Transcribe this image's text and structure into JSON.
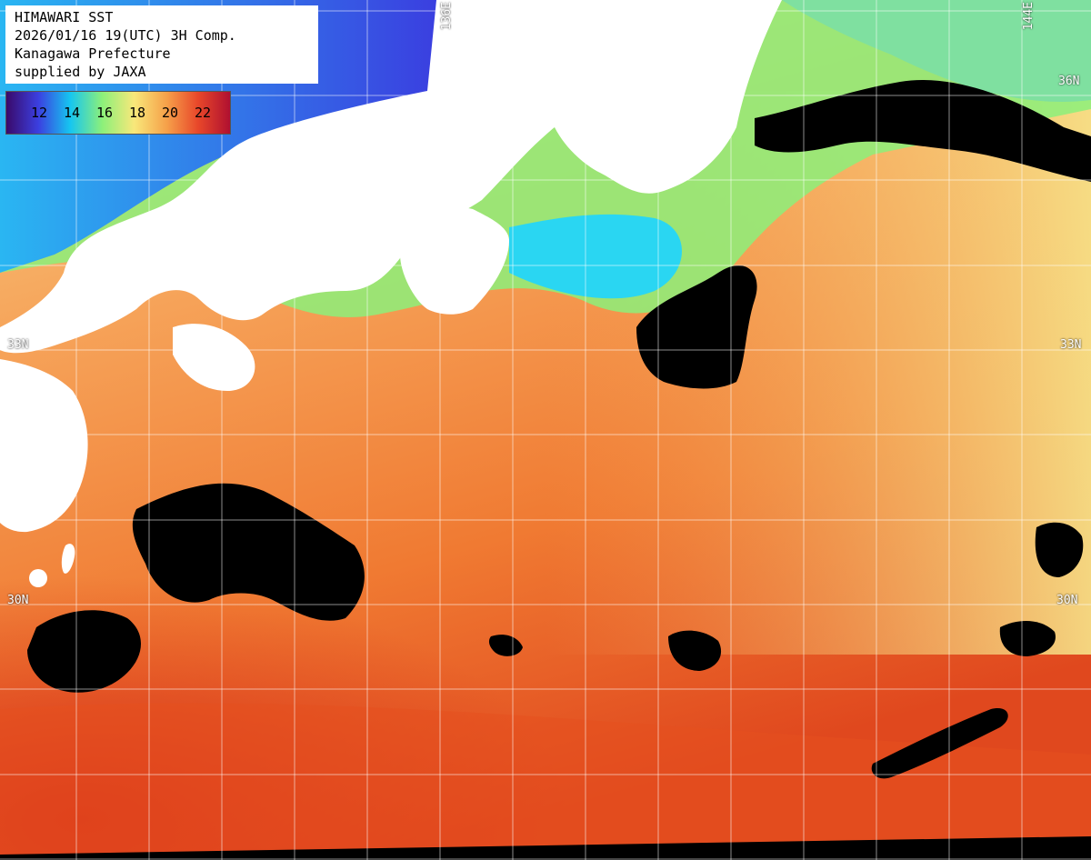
{
  "header": {
    "lines": [
      "HIMAWARI SST",
      "2026/01/16 19(UTC) 3H Comp.",
      "Kanagawa Prefecture",
      "supplied by JAXA"
    ]
  },
  "legend": {
    "labels": [
      "12",
      "14",
      "16",
      "18",
      "20",
      "22"
    ],
    "colors": [
      "#3a0a6a",
      "#3b3fe0",
      "#16c6f0",
      "#8cf07a",
      "#f8e87a",
      "#f6a24a",
      "#e8472a",
      "#b01030"
    ]
  },
  "grid_labels": {
    "lon_left": "136E",
    "lon_right": "144E",
    "lat_top": "36N",
    "lat_mid": "33N",
    "lat_mid_left": "33N",
    "lat_bottom": "30N",
    "lat_bottom_left": "30N"
  },
  "colors": {
    "land": "#ffffff",
    "no_data": "#000000",
    "warm": "#f27a2c",
    "hot": "#e2431e",
    "mild": "#f6b060",
    "cool": "#8cf07a",
    "cold": "#29c8ef",
    "grid": "#ffffff"
  }
}
